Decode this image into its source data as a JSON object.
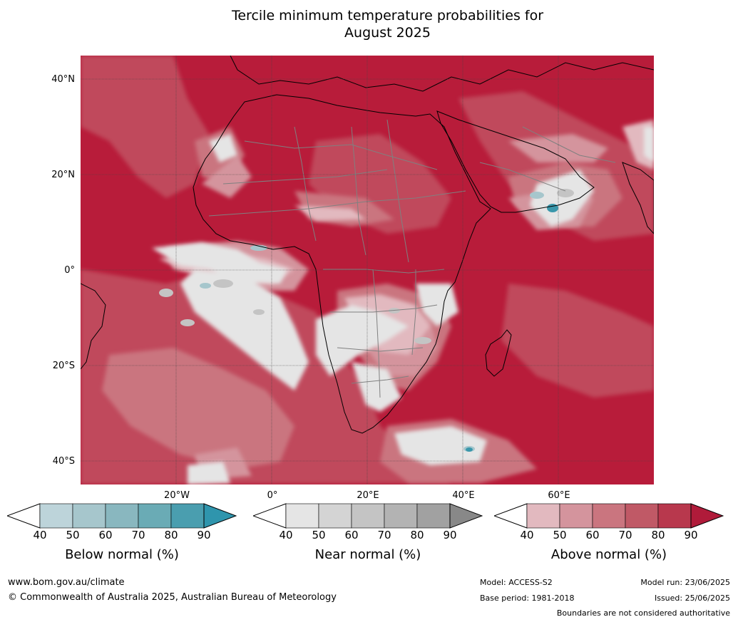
{
  "title_line1": "Tercile minimum temperature probabilities for",
  "title_line2": "August 2025",
  "lat_labels": [
    "40°N",
    "20°N",
    "0°",
    "20°S",
    "40°S"
  ],
  "lon_labels": [
    "20°W",
    "0°",
    "20°E",
    "40°E",
    "60°E"
  ],
  "colorbars": [
    {
      "label": "Below normal (%)",
      "ticks": [
        "40",
        "50",
        "60",
        "70",
        "80",
        "90"
      ],
      "colors": [
        "#bdd4da",
        "#a6c6cc",
        "#89b7bf",
        "#6aabb5",
        "#4a9eaf",
        "#2f95ad"
      ]
    },
    {
      "label": "Near normal (%)",
      "ticks": [
        "40",
        "50",
        "60",
        "70",
        "80",
        "90"
      ],
      "colors": [
        "#e5e5e5",
        "#d4d4d4",
        "#c4c4c4",
        "#b3b3b3",
        "#a1a1a1",
        "#888888"
      ]
    },
    {
      "label": "Above normal (%)",
      "ticks": [
        "40",
        "50",
        "60",
        "70",
        "80",
        "90"
      ],
      "colors": [
        "#e2b9bf",
        "#d4949d",
        "#ca757f",
        "#c05966",
        "#b8384d",
        "#b01b3a"
      ]
    }
  ],
  "footer": {
    "website": "www.bom.gov.au/climate",
    "copyright": "© Commonwealth of Australia 2025, Australian Bureau of Meteorology",
    "model": "Model: ACCESS-S2",
    "base_period": "Base period: 1981-2018",
    "model_run": "Model run: 23/06/2025",
    "issued": "Issued: 25/06/2025",
    "disclaimer": "Boundaries are not considered authoritative"
  },
  "map_colors": {
    "ocean_high": "#b81c3a",
    "above_70": "#c04a5c",
    "above_60": "#ca757f",
    "above_50": "#d4949d",
    "above_40": "#e2b9bf",
    "near": "#e5e5e5",
    "near_dark": "#c4c4c4",
    "below": "#a6c6cc",
    "below_dark": "#3a97ab",
    "coast": "#000000",
    "border": "#808080"
  }
}
